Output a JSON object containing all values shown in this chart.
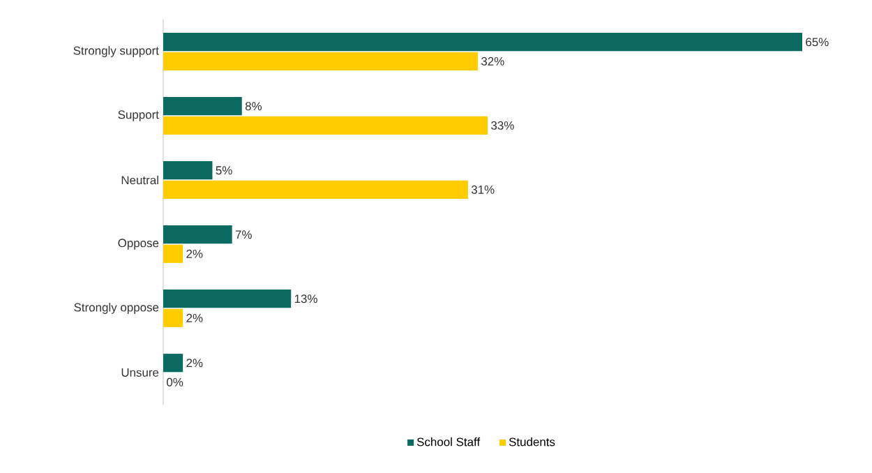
{
  "chart_data": {
    "type": "bar",
    "orientation": "horizontal",
    "categories": [
      "Strongly support",
      "Support",
      "Neutral",
      "Oppose",
      "Strongly oppose",
      "Unsure"
    ],
    "series": [
      {
        "name": "School Staff",
        "color": "#0b6b63",
        "values": [
          65,
          8,
          5,
          7,
          13,
          2
        ],
        "value_labels": [
          "65%",
          "8%",
          "5%",
          "7%",
          "13%",
          "2%"
        ]
      },
      {
        "name": "Students",
        "color": "#ffcc00",
        "values": [
          32,
          33,
          31,
          2,
          2,
          0
        ],
        "value_labels": [
          "32%",
          "33%",
          "31%",
          "2%",
          "2%",
          "0%"
        ]
      }
    ],
    "legend": "bottom"
  }
}
